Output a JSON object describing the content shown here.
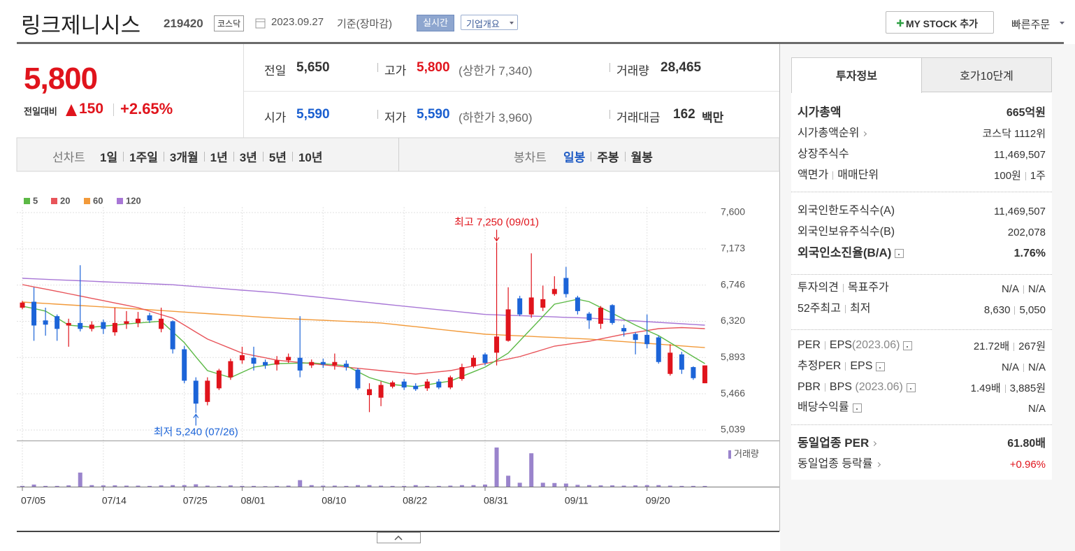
{
  "header": {
    "title": "링크제니시스",
    "code": "219420",
    "market": "코스닥",
    "date": "2023.09.27",
    "basis": "기준(장마감)",
    "realtime": "실시간",
    "company": "기업개요",
    "my_stock": "MY STOCK 추가",
    "quick_order": "빠른주문"
  },
  "price": {
    "current": "5,800",
    "change_label": "전일대비",
    "change": "150",
    "rate": "+2.65%"
  },
  "summary": {
    "prev": {
      "label": "전일",
      "value": "5,650"
    },
    "high": {
      "label": "고가",
      "value": "5,800",
      "note": "(상한가 7,340)"
    },
    "volume": {
      "label": "거래량",
      "value": "28,465"
    },
    "open": {
      "label": "시가",
      "value": "5,590"
    },
    "low": {
      "label": "저가",
      "value": "5,590",
      "note": "(하한가 3,960)"
    },
    "amount": {
      "label": "거래대금",
      "value": "162",
      "unit": "백만"
    }
  },
  "tabs": {
    "line_chart": "선차트",
    "line_periods": [
      "1일",
      "1주일",
      "3개월",
      "1년",
      "3년",
      "5년",
      "10년"
    ],
    "candle_chart": "봉차트",
    "candle_periods": [
      "일봉",
      "주봉",
      "월봉"
    ]
  },
  "chart_data": {
    "type": "candlestick",
    "x": [
      "07/05",
      "07/06",
      "07/07",
      "07/10",
      "07/11",
      "07/12",
      "07/13",
      "07/14",
      "07/17",
      "07/18",
      "07/19",
      "07/20",
      "07/21",
      "07/24",
      "07/25",
      "07/26",
      "07/27",
      "07/28",
      "07/31",
      "08/01",
      "08/02",
      "08/03",
      "08/04",
      "08/07",
      "08/08",
      "08/09",
      "08/10",
      "08/11",
      "08/14",
      "08/16",
      "08/17",
      "08/18",
      "08/21",
      "08/22",
      "08/23",
      "08/24",
      "08/25",
      "08/28",
      "08/29",
      "08/30",
      "08/31",
      "09/01",
      "09/04",
      "09/05",
      "09/06",
      "09/07",
      "09/08",
      "09/11",
      "09/12",
      "09/13",
      "09/14",
      "09/15",
      "09/18",
      "09/19",
      "09/20",
      "09/21",
      "09/22",
      "09/25",
      "09/26",
      "09/27"
    ],
    "open": [
      6480,
      6550,
      6330,
      6380,
      6270,
      6300,
      6230,
      6310,
      6190,
      6290,
      6300,
      6390,
      6230,
      6320,
      5990,
      5620,
      5370,
      5530,
      5660,
      5860,
      5890,
      5840,
      5810,
      5860,
      5890,
      5800,
      5840,
      5800,
      5820,
      5750,
      5450,
      5420,
      5550,
      5610,
      5560,
      5530,
      5610,
      5540,
      5640,
      5790,
      5930,
      5950,
      6090,
      6590,
      6400,
      6480,
      6640,
      6830,
      6600,
      6410,
      6290,
      6510,
      6240,
      6170,
      6160,
      6130,
      5700,
      5930,
      5780,
      5590
    ],
    "high": [
      6560,
      6720,
      6480,
      6400,
      6350,
      6980,
      6320,
      6340,
      6480,
      6440,
      6430,
      6420,
      6480,
      6330,
      6030,
      5660,
      5660,
      5760,
      5880,
      6020,
      6020,
      5870,
      5910,
      5940,
      6380,
      5870,
      5880,
      5940,
      5860,
      5770,
      5590,
      5610,
      5620,
      5640,
      5590,
      5640,
      5640,
      5680,
      5820,
      5920,
      5950,
      7250,
      6720,
      6620,
      7120,
      6740,
      6850,
      6960,
      6620,
      6430,
      6500,
      6520,
      6280,
      6190,
      6400,
      6150,
      6050,
      5960,
      5790,
      5800
    ],
    "low": [
      6460,
      6090,
      6150,
      6090,
      6020,
      6200,
      6200,
      6170,
      6150,
      6230,
      6250,
      6300,
      6190,
      5940,
      5590,
      5240,
      5330,
      5510,
      5630,
      5820,
      5740,
      5760,
      5740,
      5830,
      5660,
      5770,
      5770,
      5750,
      5740,
      5510,
      5250,
      5320,
      5530,
      5510,
      5500,
      5500,
      5520,
      5520,
      5620,
      5770,
      5800,
      5800,
      6080,
      6380,
      6360,
      6440,
      6620,
      6600,
      6400,
      6230,
      6230,
      6280,
      6140,
      5930,
      6000,
      5820,
      5680,
      5700,
      5630,
      5590
    ],
    "close": [
      6540,
      6270,
      6280,
      6230,
      6300,
      6230,
      6280,
      6230,
      6300,
      6320,
      6350,
      6330,
      6350,
      5990,
      5620,
      5350,
      5620,
      5740,
      5850,
      5920,
      5820,
      5800,
      5860,
      5900,
      5740,
      5840,
      5810,
      5840,
      5780,
      5530,
      5520,
      5570,
      5600,
      5540,
      5520,
      5610,
      5540,
      5660,
      5780,
      5890,
      5830,
      6140,
      6460,
      6400,
      6600,
      6580,
      6700,
      6640,
      6440,
      6330,
      6480,
      6300,
      6200,
      6100,
      6050,
      5840,
      5950,
      5750,
      5650,
      5800
    ],
    "up_color": "#e0141c",
    "down_color": "#1c64d8",
    "ylim": [
      5039,
      7600
    ],
    "yticks": [
      {
        "value": 5039,
        "label": "5,039"
      },
      {
        "value": 5466,
        "label": "5,466"
      },
      {
        "value": 5893,
        "label": "5,893"
      },
      {
        "value": 6320,
        "label": "6,320"
      },
      {
        "value": 6746,
        "label": "6,746"
      },
      {
        "value": 7173,
        "label": "7,173"
      },
      {
        "value": 7600,
        "label": "7,600"
      }
    ],
    "xticks": [
      "07/05",
      "07/14",
      "07/25",
      "08/01",
      "08/10",
      "08/22",
      "08/31",
      "09/11",
      "09/20"
    ],
    "grid": true,
    "series": [
      {
        "name": "5",
        "color": "#5cb946",
        "values": [
          6497,
          6470,
          6440,
          6357,
          6274,
          6262,
          6250,
          6262,
          6275,
          6288,
          6300,
          6310,
          6320,
          6194,
          6068,
          5900,
          5739,
          5698,
          5657,
          5718,
          5780,
          5800,
          5821,
          5824,
          5827,
          5830,
          5819,
          5808,
          5796,
          5726,
          5657,
          5616,
          5575,
          5562,
          5550,
          5572,
          5594,
          5616,
          5671,
          5725,
          5780,
          5862,
          5945,
          6089,
          6233,
          6377,
          6521,
          6550,
          6579,
          6550,
          6482,
          6414,
          6344,
          6274,
          6212,
          6151,
          6068,
          5986,
          5903,
          5821
        ]
      },
      {
        "name": "20",
        "color": "#e8545a",
        "values": [
          6752,
          6725,
          6699,
          6672,
          6645,
          6618,
          6590,
          6563,
          6535,
          6508,
          6480,
          6439,
          6398,
          6357,
          6275,
          6192,
          6110,
          6055,
          6000,
          5945,
          5917,
          5890,
          5862,
          5848,
          5835,
          5821,
          5807,
          5794,
          5780,
          5766,
          5753,
          5739,
          5725,
          5712,
          5698,
          5712,
          5725,
          5739,
          5766,
          5794,
          5821,
          5849,
          5876,
          5904,
          5945,
          5986,
          6027,
          6046,
          6066,
          6085,
          6112,
          6140,
          6167,
          6189,
          6211,
          6233,
          6240,
          6245,
          6240,
          6233
        ]
      },
      {
        "name": "60",
        "color": "#f29a3a",
        "values": [
          6546,
          6538,
          6530,
          6521,
          6513,
          6505,
          6497,
          6489,
          6480,
          6472,
          6464,
          6455,
          6446,
          6437,
          6428,
          6419,
          6410,
          6402,
          6393,
          6384,
          6375,
          6366,
          6357,
          6351,
          6344,
          6338,
          6332,
          6325,
          6319,
          6313,
          6306,
          6300,
          6285,
          6270,
          6256,
          6241,
          6226,
          6211,
          6196,
          6182,
          6167,
          6161,
          6154,
          6148,
          6142,
          6135,
          6129,
          6123,
          6116,
          6110,
          6100,
          6090,
          6080,
          6070,
          6060,
          6050,
          6040,
          6030,
          6020,
          6010
        ]
      },
      {
        "name": "120",
        "color": "#a877d6",
        "values": [
          6826,
          6820,
          6814,
          6808,
          6803,
          6797,
          6791,
          6785,
          6779,
          6773,
          6768,
          6762,
          6756,
          6750,
          6739,
          6729,
          6718,
          6708,
          6697,
          6686,
          6676,
          6665,
          6655,
          6641,
          6626,
          6612,
          6598,
          6583,
          6569,
          6554,
          6540,
          6525,
          6511,
          6497,
          6483,
          6469,
          6456,
          6442,
          6428,
          6414,
          6400,
          6395,
          6390,
          6386,
          6381,
          6376,
          6371,
          6366,
          6362,
          6357,
          6349,
          6340,
          6332,
          6324,
          6315,
          6307,
          6299,
          6291,
          6282,
          6274
        ]
      }
    ],
    "volume_name": "거래량",
    "volume_color": "#9a84cc",
    "volume_lim": [
      0,
      1500000
    ],
    "volume": [
      30000,
      80000,
      30000,
      30000,
      50000,
      540000,
      60000,
      50000,
      50000,
      40000,
      40000,
      30000,
      50000,
      60000,
      60000,
      90000,
      40000,
      30000,
      50000,
      30000,
      30000,
      20000,
      30000,
      40000,
      250000,
      60000,
      40000,
      40000,
      30000,
      60000,
      60000,
      40000,
      30000,
      30000,
      60000,
      30000,
      30000,
      40000,
      60000,
      60000,
      80000,
      1500000,
      420000,
      150000,
      1280000,
      150000,
      140000,
      120000,
      70000,
      60000,
      50000,
      50000,
      40000,
      50000,
      60000,
      60000,
      40000,
      30000,
      30000,
      28465
    ],
    "annotations": [
      {
        "text": "최고 7,250 (09/01)",
        "color": "#e0141c"
      },
      {
        "text": "최저 5,240 (07/26)",
        "color": "#1c64d8"
      }
    ]
  },
  "side": {
    "tabs": [
      "투자정보",
      "호가10단계"
    ],
    "market_cap": {
      "label": "시가총액",
      "value": "665억원"
    },
    "rank": {
      "label": "시가총액순위",
      "value": "코스닥 1112위"
    },
    "shares": {
      "label": "상장주식수",
      "value": "11,469,507"
    },
    "par": {
      "label": [
        "액면가",
        "매매단위"
      ],
      "value": [
        "100원",
        "1주"
      ]
    },
    "foreign_limit": {
      "label": "외국인한도주식수(A)",
      "value": "11,469,507"
    },
    "foreign_hold": {
      "label": "외국인보유주식수(B)",
      "value": "202,078"
    },
    "foreign_rate": {
      "label": "외국인소진율(B/A)",
      "value": "1.76%"
    },
    "opinion": {
      "label": [
        "투자의견",
        "목표주가"
      ],
      "value": [
        "N/A",
        "N/A"
      ]
    },
    "week52": {
      "label": [
        "52주최고",
        "최저"
      ],
      "value": [
        "8,630",
        "5,050"
      ]
    },
    "per": {
      "label": [
        "PER",
        "EPS"
      ],
      "date": "(2023.06)",
      "value": [
        "21.72배",
        "267원"
      ]
    },
    "est_per": {
      "label": [
        "추정PER",
        "EPS"
      ],
      "value": [
        "N/A",
        "N/A"
      ]
    },
    "pbr": {
      "label": [
        "PBR",
        "BPS"
      ],
      "date": "(2023.06)",
      "value": [
        "1.49배",
        "3,885원"
      ]
    },
    "dividend": {
      "label": "배당수익률",
      "value": "N/A"
    },
    "industry_per": {
      "label": "동일업종 PER",
      "value": "61.80배"
    },
    "industry_rate": {
      "label": "동일업종 등락률",
      "value": "+0.96%"
    }
  }
}
